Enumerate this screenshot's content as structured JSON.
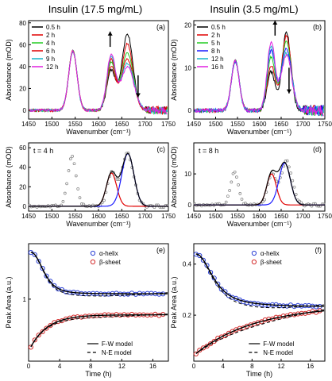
{
  "titles": {
    "left": "Insulin (17.5 mg/mL)",
    "right": "Insulin (3.5 mg/mL)"
  },
  "colors": {
    "black": "#000000",
    "red": "#e00000",
    "green": "#22cc22",
    "blue": "#1a1aff",
    "cyan": "#17b6c8",
    "magenta": "#e020e0",
    "grey": "#808080",
    "open_blue": "#2a3fd6",
    "open_red": "#d42a2a"
  },
  "chart_data": [
    {
      "id": "a",
      "panel_label": "(a)",
      "type": "line",
      "xlabel": "Wavenumber (cm⁻¹)",
      "ylabel": "Absorbance (mOD)",
      "xlim": [
        1450,
        1750
      ],
      "ylim": [
        -8,
        82
      ],
      "xticks": [
        1450,
        1500,
        1550,
        1600,
        1650,
        1700,
        1750
      ],
      "yticks": [
        0,
        20,
        40,
        60,
        80
      ],
      "legend": "top-left",
      "arrows": [
        {
          "x": 1625,
          "from": 58,
          "to": 72
        },
        {
          "x": 1685,
          "from": 32,
          "to": 12
        }
      ],
      "series": [
        {
          "name": "0.5 h",
          "color_key": "black",
          "a1": 54,
          "a2": 36,
          "a3": 70,
          "a3w": 12
        },
        {
          "name": "2 h",
          "color_key": "red",
          "a1": 54,
          "a2": 40,
          "a3": 61,
          "a3w": 12
        },
        {
          "name": "4 h",
          "color_key": "green",
          "a1": 54,
          "a2": 43,
          "a3": 52,
          "a3w": 13
        },
        {
          "name": "6 h",
          "color_key": "red",
          "a1": 54,
          "a2": 46,
          "a3": 47,
          "a3w": 13
        },
        {
          "name": "9 h",
          "color_key": "cyan",
          "a1": 54,
          "a2": 48,
          "a3": 43,
          "a3w": 14
        },
        {
          "name": "12 h",
          "color_key": "magenta",
          "a1": 54,
          "a2": 50,
          "a3": 40,
          "a3w": 14
        }
      ]
    },
    {
      "id": "b",
      "panel_label": "(b)",
      "type": "line",
      "xlabel": "Wavenumber (cm⁻¹)",
      "ylabel": "Absorbance (mOD)",
      "xlim": [
        1450,
        1750
      ],
      "ylim": [
        -2,
        21
      ],
      "xticks": [
        1450,
        1500,
        1550,
        1600,
        1650,
        1700,
        1750
      ],
      "yticks": [
        0,
        10,
        20
      ],
      "legend": "top-left",
      "arrows": [
        {
          "x": 1636,
          "from": 17.5,
          "to": 21
        },
        {
          "x": 1668,
          "from": 10,
          "to": 4
        }
      ],
      "series": [
        {
          "name": "0.5 h",
          "color_key": "black",
          "a1": 11.5,
          "a2": 9,
          "a3": 18.5,
          "a3w": 10
        },
        {
          "name": "2 h",
          "color_key": "red",
          "a1": 11.5,
          "a2": 10.5,
          "a3": 17.5,
          "a3w": 11
        },
        {
          "name": "5 h",
          "color_key": "green",
          "a1": 11.5,
          "a2": 12.5,
          "a3": 16,
          "a3w": 11
        },
        {
          "name": "8 h",
          "color_key": "blue",
          "a1": 11.5,
          "a2": 14,
          "a3": 14.5,
          "a3w": 12
        },
        {
          "name": "12 h",
          "color_key": "cyan",
          "a1": 11.5,
          "a2": 15,
          "a3": 13.5,
          "a3w": 12
        },
        {
          "name": "16 h",
          "color_key": "magenta",
          "a1": 11.5,
          "a2": 16,
          "a3": 13,
          "a3w": 12
        }
      ]
    },
    {
      "id": "c",
      "panel_label": "(c)",
      "type": "scatter",
      "annotation": "t = 4 h",
      "xlabel": "Wavenumber (cm⁻¹)",
      "ylabel": "Absorbance (mOD)",
      "xlim": [
        1450,
        1750
      ],
      "ylim": [
        -5,
        65
      ],
      "xticks": [
        1450,
        1500,
        1550,
        1600,
        1650,
        1700,
        1750
      ],
      "yticks": [
        0,
        20,
        40,
        60
      ],
      "data": {
        "a1": 51,
        "a2": 33,
        "a3": 54
      },
      "fits": [
        {
          "name": "red",
          "color_key": "red",
          "center": 1628,
          "amplitude": 34,
          "width": 11
        },
        {
          "name": "blue",
          "color_key": "blue",
          "center": 1663,
          "amplitude": 54,
          "width": 13
        },
        {
          "name": "sum",
          "color_key": "black",
          "sum": true
        }
      ]
    },
    {
      "id": "d",
      "panel_label": "(d)",
      "type": "scatter",
      "annotation": "t = 8 h",
      "xlabel": "Wavenumber (cm⁻¹)",
      "ylabel": "Absorbance (mOD)",
      "xlim": [
        1450,
        1750
      ],
      "ylim": [
        -2,
        20
      ],
      "xticks": [
        1450,
        1500,
        1550,
        1600,
        1650,
        1700,
        1750
      ],
      "yticks": [
        0,
        10
      ],
      "data": {
        "a1": 10.5,
        "a2": 9.5,
        "a3": 14
      },
      "fits": [
        {
          "name": "red",
          "color_key": "red",
          "center": 1628,
          "amplitude": 10,
          "width": 11
        },
        {
          "name": "blue",
          "color_key": "blue",
          "center": 1658,
          "amplitude": 13.5,
          "width": 13
        },
        {
          "name": "sum",
          "color_key": "black",
          "sum": true
        }
      ]
    },
    {
      "id": "e",
      "panel_label": "(e)",
      "type": "scatter",
      "xlabel": "Time (h)",
      "ylabel": "Peak Area (a.u.)",
      "xlim": [
        0,
        18
      ],
      "ylim": [
        0.05,
        1.85
      ],
      "xticks": [
        0,
        4,
        8,
        12,
        16
      ],
      "yticks": [
        1
      ],
      "legend": "top-right",
      "series": [
        {
          "name": "α-helix",
          "color_key": "open_blue",
          "kind": "decay",
          "v0": 1.72,
          "vinf": 1.08,
          "k": 0.55,
          "x0": 0.3
        },
        {
          "name": "β-sheet",
          "color_key": "open_red",
          "kind": "rise",
          "v0": 0.27,
          "vinf": 0.76,
          "k": 0.45,
          "x0": 0.3
        }
      ],
      "models": [
        {
          "name": "F-W model",
          "style": "solid"
        },
        {
          "name": "N-E model",
          "style": "dashed"
        }
      ]
    },
    {
      "id": "f",
      "panel_label": "(f)",
      "type": "scatter",
      "xlabel": "Time (h)",
      "ylabel": "Peak Area (a.u.)",
      "xlim": [
        0,
        18
      ],
      "ylim": [
        0.02,
        0.48
      ],
      "xticks": [
        0,
        4,
        8,
        12,
        16
      ],
      "yticks": [
        0.2,
        0.4
      ],
      "legend": "top-right",
      "series": [
        {
          "name": "α-helix",
          "color_key": "open_blue",
          "kind": "decay",
          "v0": 0.44,
          "vinf": 0.22,
          "k": 0.09,
          "x0": 0.3
        },
        {
          "name": "β-sheet",
          "color_key": "open_red",
          "kind": "rise",
          "v0": 0.05,
          "vinf": 0.24,
          "k": 0.12,
          "x0": 0.3
        }
      ],
      "models": [
        {
          "name": "F-W model",
          "style": "solid"
        },
        {
          "name": "N-E model",
          "style": "dashed"
        }
      ]
    }
  ]
}
